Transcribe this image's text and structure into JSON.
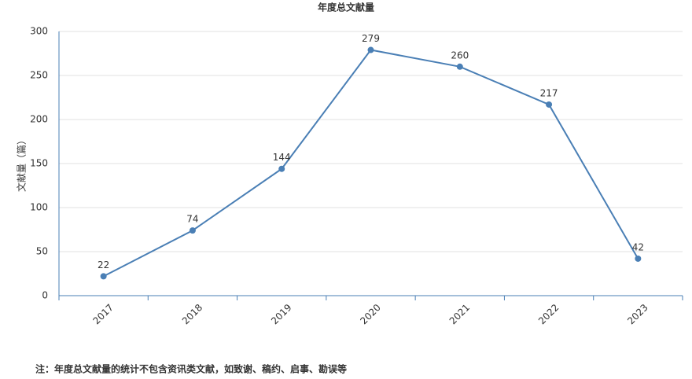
{
  "chart_data": {
    "type": "line",
    "title": "年度总文献量",
    "y_label": "文献量（篇）",
    "categories": [
      "2017",
      "2018",
      "2019",
      "2020",
      "2021",
      "2022",
      "2023"
    ],
    "values": [
      22,
      74,
      144,
      279,
      260,
      217,
      42
    ],
    "color": "#4a7fb5",
    "ylim": [
      0,
      300
    ],
    "yticks": [
      0,
      50,
      100,
      150,
      200,
      250,
      300
    ],
    "grid": true,
    "note": "注：年度总文献量的统计不包含资讯类文献，如致谢、稿约、启事、勘误等"
  }
}
